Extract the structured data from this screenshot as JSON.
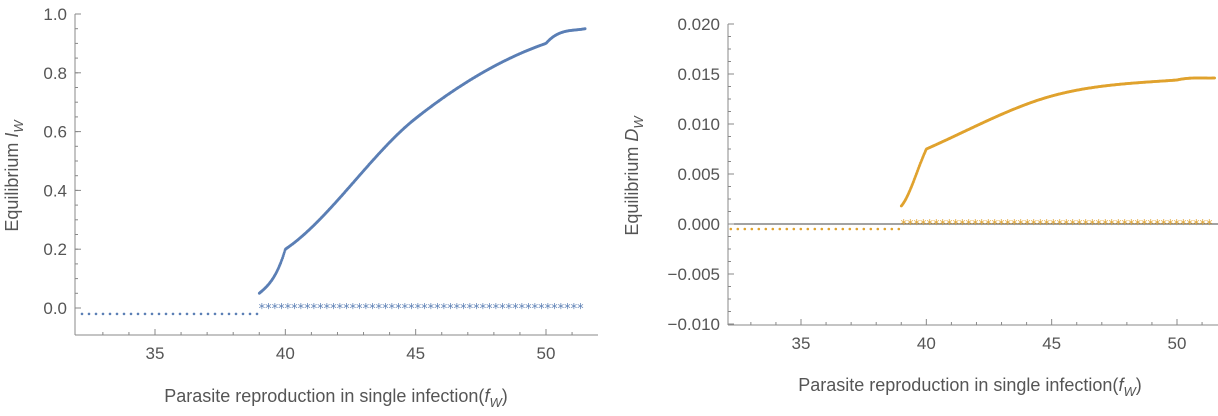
{
  "chart_data": [
    {
      "type": "scatter",
      "title": "",
      "xlabel_prefix": "Parasite reproduction in single infection(",
      "xlabel_var": "f",
      "xlabel_sub": "W",
      "xlabel_suffix": ")",
      "ylabel_prefix": "Equilibrium ",
      "ylabel_var": "I",
      "ylabel_sub": "W",
      "xlim": [
        32.2,
        51.5
      ],
      "ylim": [
        -0.1,
        1.0
      ],
      "xticks": [
        35,
        40,
        45,
        50
      ],
      "xtick_labels": [
        "35",
        "40",
        "45",
        "50"
      ],
      "yticks": [
        0.0,
        0.2,
        0.4,
        0.6,
        0.8,
        1.0
      ],
      "ytick_labels": [
        "0.0",
        "0.2",
        "0.4",
        "0.6",
        "0.8",
        "1.0"
      ],
      "color": "#5b7fb5",
      "zero_line": false,
      "series": [
        {
          "kind": "dotted-unstable",
          "x_range": [
            32.2,
            39.0
          ],
          "y": -0.02
        },
        {
          "kind": "stable-branch",
          "x_range": [
            39.0,
            51.5
          ],
          "y_at": [
            [
              39.0,
              0.05
            ],
            [
              40.0,
              0.2
            ],
            [
              45.0,
              0.645
            ],
            [
              50.0,
              0.9
            ],
            [
              51.5,
              0.95
            ]
          ]
        },
        {
          "kind": "star-unstable",
          "x_range": [
            39.1,
            51.5
          ],
          "y": 0.0
        }
      ]
    },
    {
      "type": "scatter",
      "title": "",
      "xlabel_prefix": "Parasite reproduction in single infection(",
      "xlabel_var": "f",
      "xlabel_sub": "W",
      "xlabel_suffix": ")",
      "ylabel_prefix": "Equilibrium ",
      "ylabel_var": "D",
      "ylabel_sub": "W",
      "xlim": [
        32.2,
        51.5
      ],
      "ylim": [
        -0.01,
        0.02
      ],
      "xticks": [
        35,
        40,
        45,
        50
      ],
      "xtick_labels": [
        "35",
        "40",
        "45",
        "50"
      ],
      "yticks": [
        -0.01,
        -0.005,
        0.0,
        0.005,
        0.01,
        0.015,
        0.02
      ],
      "ytick_labels": [
        "−0.010",
        "−0.005",
        "0.000",
        "0.005",
        "0.010",
        "0.015",
        "0.020"
      ],
      "color": "#e0a22e",
      "zero_line": true,
      "series": [
        {
          "kind": "dotted-unstable",
          "x_range": [
            32.2,
            39.0
          ],
          "y": -0.0005
        },
        {
          "kind": "stable-branch",
          "x_range": [
            39.0,
            51.5
          ],
          "y_at": [
            [
              39.0,
              0.0018
            ],
            [
              40.0,
              0.0075
            ],
            [
              45.0,
              0.0128
            ],
            [
              50.0,
              0.0144
            ],
            [
              51.5,
              0.0146
            ]
          ]
        },
        {
          "kind": "star-unstable",
          "x_range": [
            39.1,
            51.5
          ],
          "y": 0.0
        }
      ]
    }
  ]
}
